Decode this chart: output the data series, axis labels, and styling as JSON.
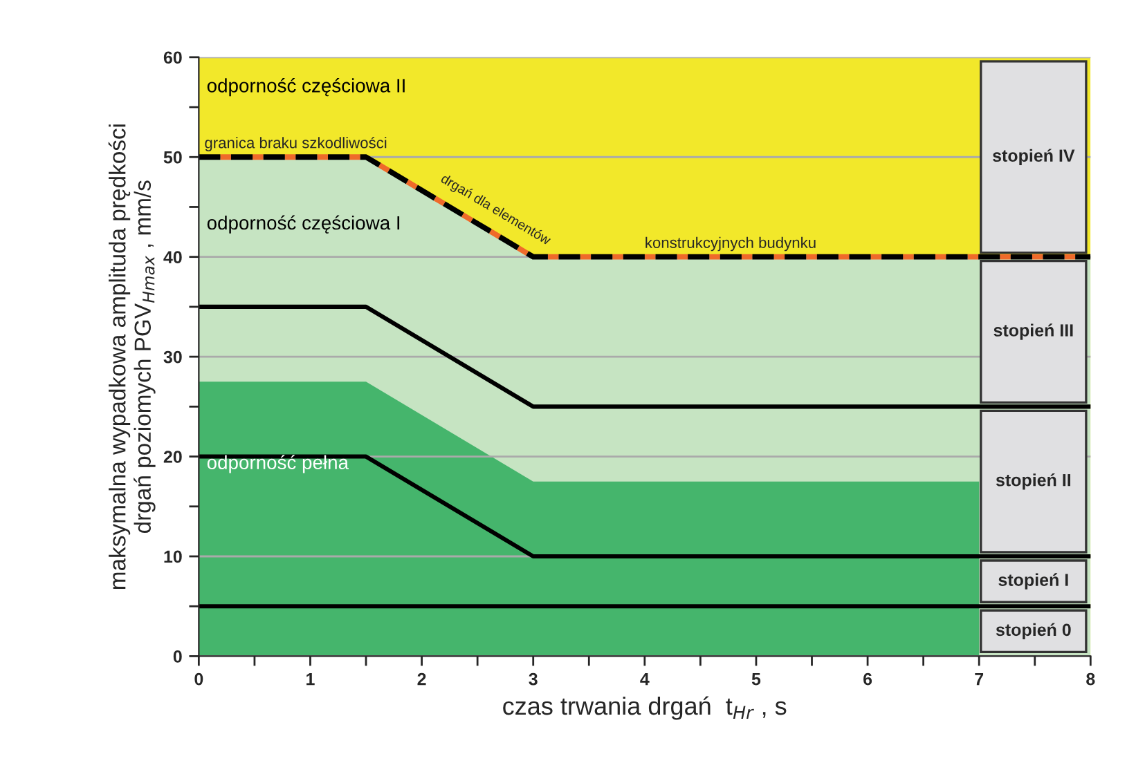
{
  "chart_data": {
    "type": "line",
    "xlabel": "czas trwania drgań  t$_{Hr}$ , s",
    "ylabel": "maksymalna wypadkowa amplituda prędkości\ndrgań poziomych PGV$_{Hmax}$ , mm/s",
    "series": [
      {
        "type": "area",
        "name": "odporność częściowa II",
        "color": "#f2e82a",
        "x": [
          0,
          8
        ],
        "values": [
          60,
          60
        ]
      },
      {
        "type": "area",
        "name": "odporność częściowa I",
        "color": "#c6e4c2",
        "line_style": "dashed",
        "x": [
          0,
          1.5,
          3,
          8
        ],
        "values": [
          50,
          50,
          40,
          40
        ]
      },
      {
        "type": "area",
        "name": "odporność pełna",
        "color": "#45b56c",
        "x": [
          0,
          1.5,
          3,
          7
        ],
        "values": [
          27.5,
          27.5,
          17.5,
          17.5
        ]
      },
      {
        "color": "#000000",
        "x": [
          0,
          1.5,
          3,
          8
        ],
        "values": [
          35,
          35,
          25,
          25
        ]
      },
      {
        "color": "#000000",
        "x": [
          0,
          1.5,
          3,
          8
        ],
        "values": [
          20,
          20,
          10,
          10
        ]
      },
      {
        "color": "#000000",
        "x": [
          0,
          8
        ],
        "values": [
          5,
          5
        ]
      }
    ],
    "annotations": [
      {
        "text": "granica braku szkodliwości",
        "x": 0.05,
        "y": 50
      },
      {
        "text": "drgań dla elementów",
        "x": 2.15,
        "y": 46
      },
      {
        "text": "konstrukcyjnych budynku",
        "x": 4.0,
        "y": 40
      },
      "stopień IV",
      "stopień III",
      "stopień II",
      "stopień I",
      "stopień 0"
    ],
    "xlim": [
      0,
      8
    ],
    "ylim": [
      0,
      60
    ],
    "xticks": [
      0,
      {
        "value": 0.5,
        "label": null
      },
      1,
      {
        "value": 1.5,
        "label": null
      },
      2,
      {
        "value": 2.5,
        "label": null
      },
      3,
      {
        "value": 3.5,
        "label": null
      },
      4,
      {
        "value": 4.5,
        "label": null
      },
      5,
      {
        "value": 5.5,
        "label": null
      },
      6,
      {
        "value": 6.5,
        "label": null
      },
      7,
      {
        "value": 7.5,
        "label": null
      },
      8
    ],
    "yticks": [
      0,
      {
        "value": 5,
        "label": null
      },
      10,
      {
        "value": 15,
        "label": null
      },
      20,
      {
        "value": 25,
        "label": null
      },
      30,
      {
        "value": 35,
        "label": null
      },
      40,
      {
        "value": 45,
        "label": null
      },
      50,
      {
        "value": 55,
        "label": null
      },
      60
    ],
    "grid": "y",
    "legend": false
  }
}
